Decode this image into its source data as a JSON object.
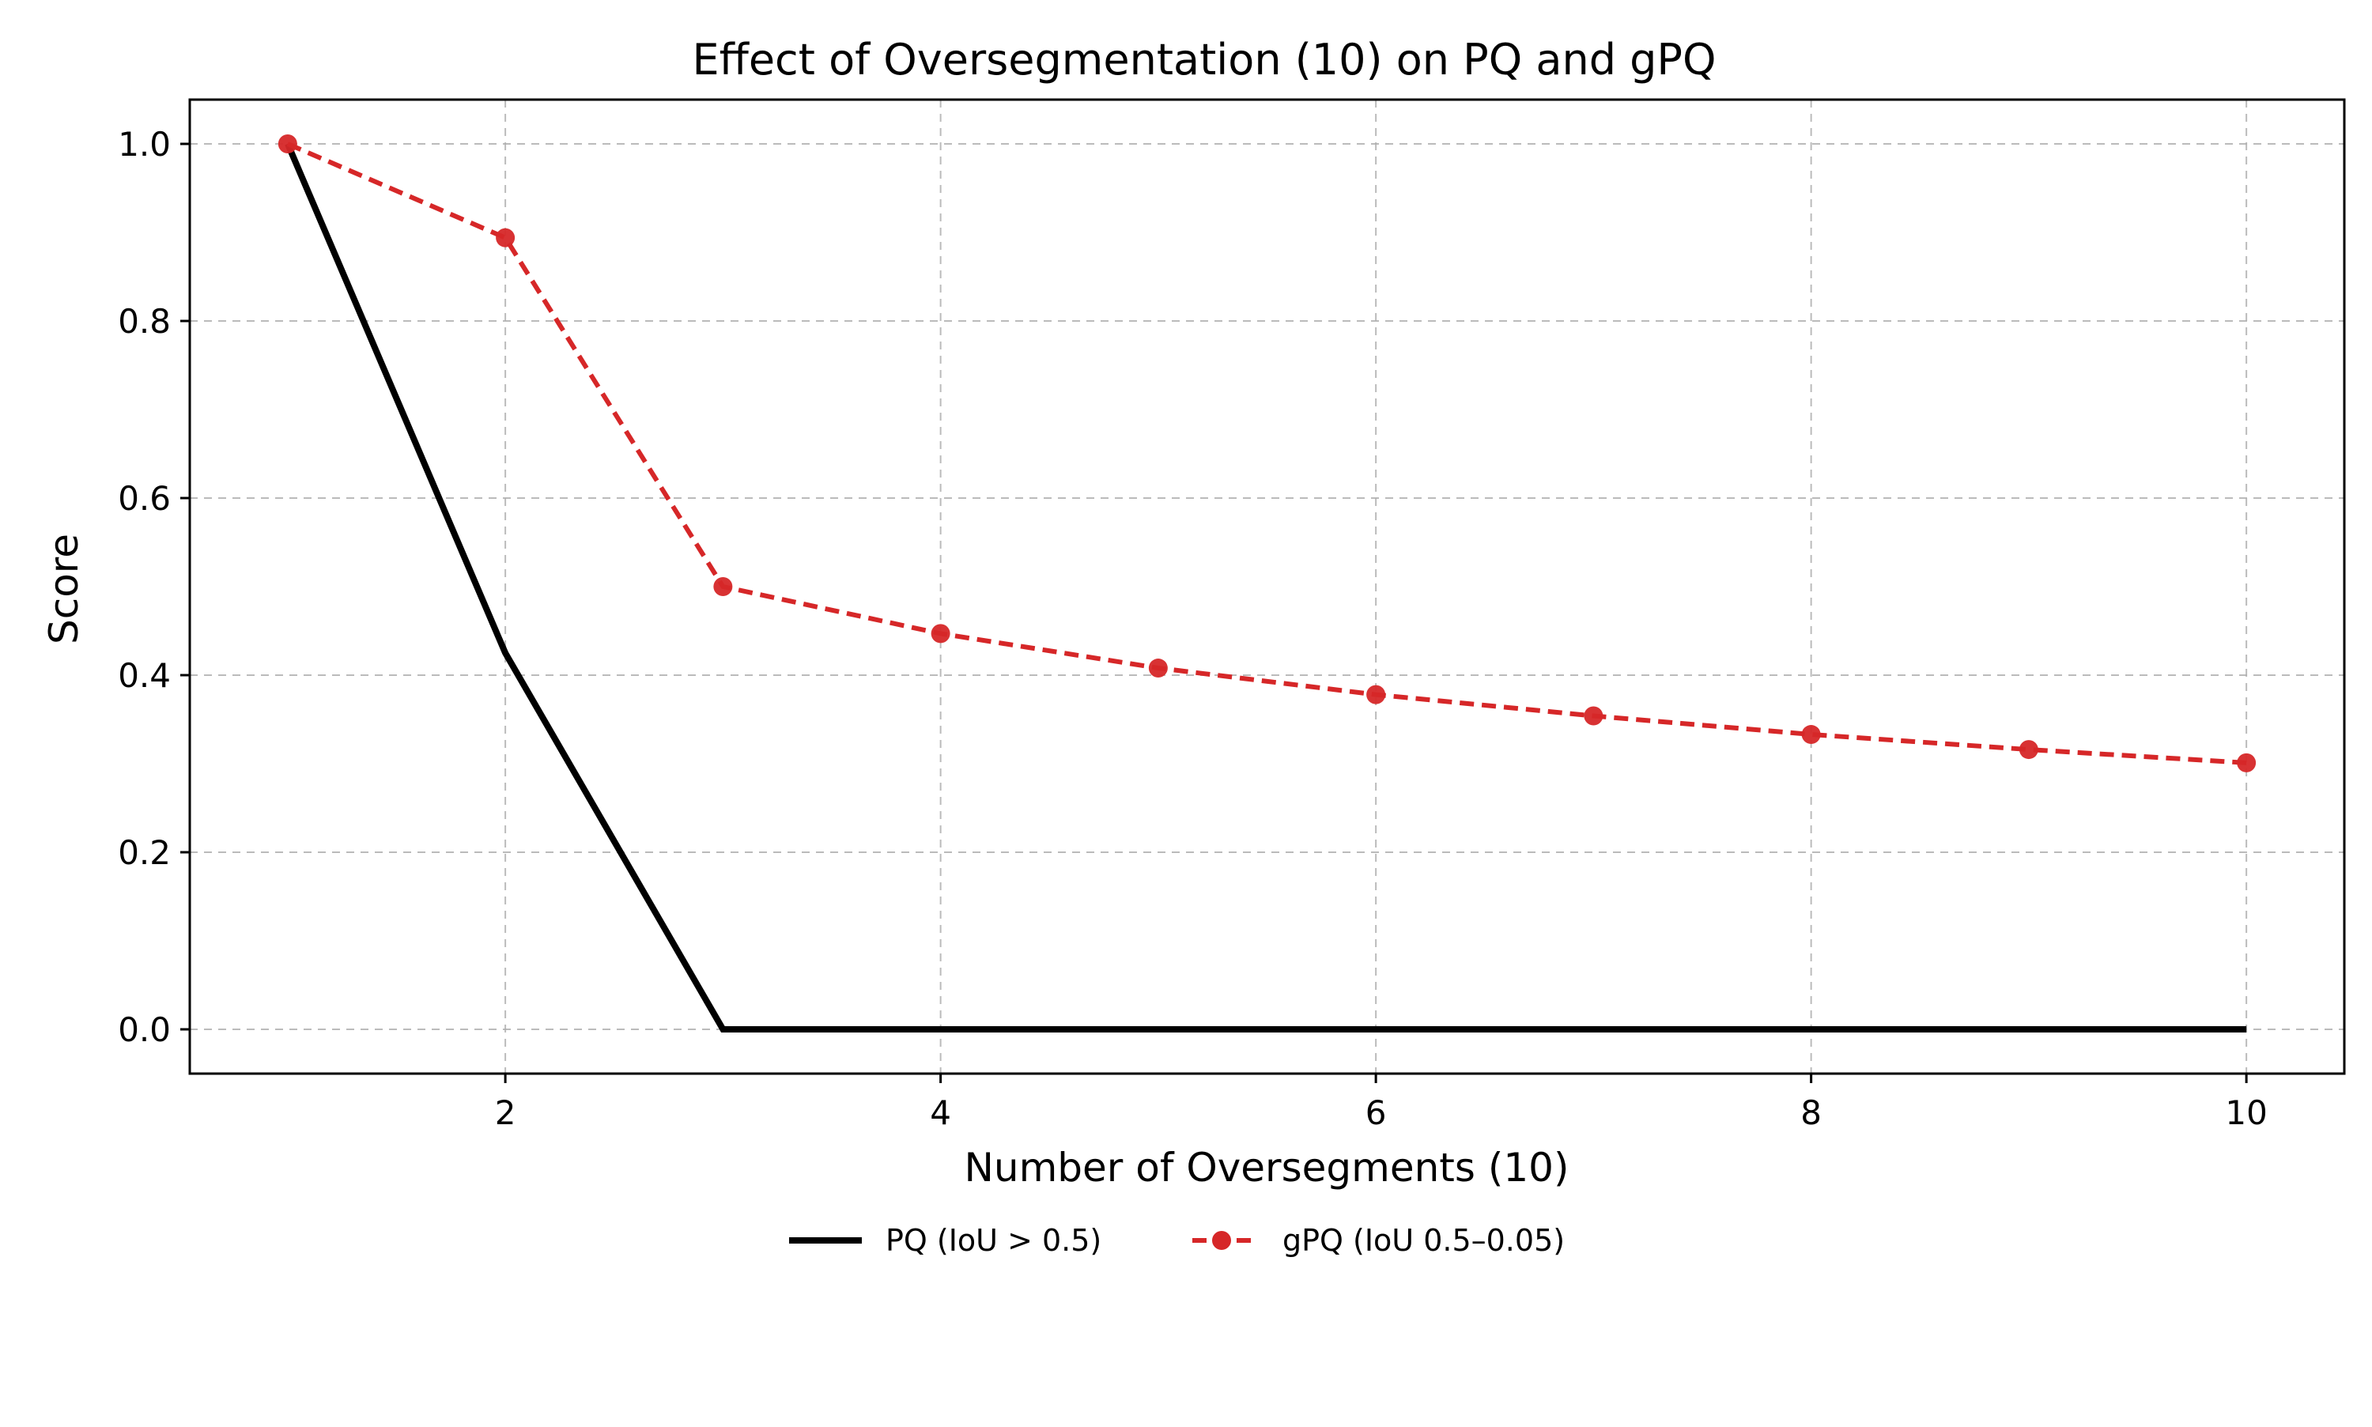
{
  "chart_data": {
    "type": "line",
    "title": "Effect of Oversegmentation (10) on PQ and gPQ",
    "xlabel": "Number of Oversegments (10)",
    "ylabel": "Score",
    "xlim": [
      0.55,
      10.45
    ],
    "ylim": [
      -0.05,
      1.05
    ],
    "x_ticks": [
      2,
      4,
      6,
      8,
      10
    ],
    "y_ticks": [
      0.0,
      0.2,
      0.4,
      0.6,
      0.8,
      1.0
    ],
    "x_tick_labels": [
      "2",
      "4",
      "6",
      "8",
      "10"
    ],
    "y_tick_labels": [
      "0.0",
      "0.2",
      "0.4",
      "0.6",
      "0.8",
      "1.0"
    ],
    "grid": true,
    "legend_position": "bottom-center",
    "series": [
      {
        "name": "PQ (IoU > 0.5)",
        "color": "#000000",
        "line_style": "solid",
        "marker": "none",
        "x": [
          1,
          2,
          3,
          4,
          5,
          6,
          7,
          8,
          9,
          10
        ],
        "y": [
          1.0,
          0.425,
          0.0,
          0.0,
          0.0,
          0.0,
          0.0,
          0.0,
          0.0,
          0.0
        ]
      },
      {
        "name": "gPQ (IoU 0.5–0.05)",
        "color": "#d62728",
        "line_style": "dashed",
        "marker": "circle",
        "x": [
          1,
          2,
          3,
          4,
          5,
          6,
          7,
          8,
          9,
          10
        ],
        "y": [
          1.0,
          0.894,
          0.5,
          0.447,
          0.408,
          0.378,
          0.354,
          0.333,
          0.316,
          0.301
        ]
      }
    ]
  }
}
